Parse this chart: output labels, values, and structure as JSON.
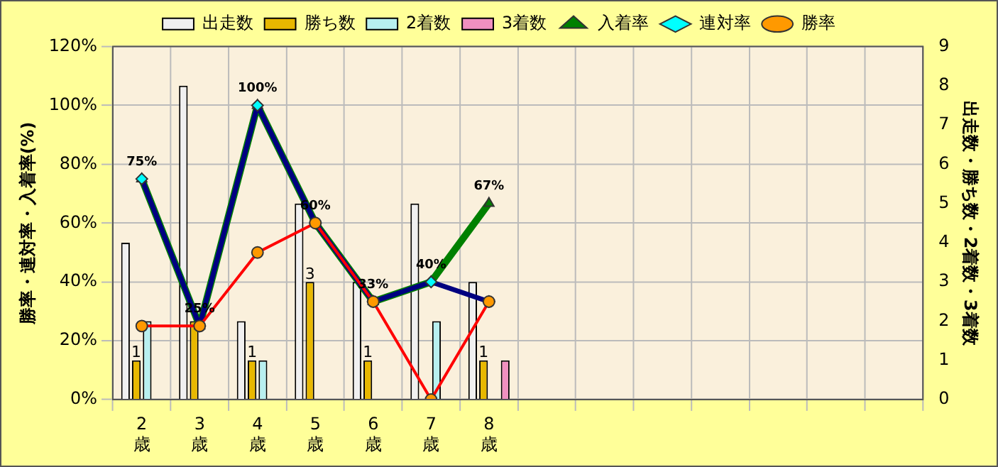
{
  "chart_data": {
    "type": "bar",
    "ylabel": "勝率・連対率・入着率(%)",
    "y2label": "出走数・勝ち数・2着数・3着数",
    "categories": [
      "2歳",
      "3歳",
      "4歳",
      "5歳",
      "6歳",
      "7歳",
      "8歳",
      null,
      null,
      null,
      null,
      null,
      null,
      null
    ],
    "series": [
      {
        "name": "出走数",
        "axis": "y2",
        "color": "#f0f0f0",
        "values": [
          4,
          8,
          2,
          5,
          3,
          5,
          3,
          null,
          null,
          null,
          null,
          null,
          null,
          null
        ]
      },
      {
        "name": "勝ち数",
        "axis": "y2",
        "color": "#e8b800",
        "values": [
          1,
          2,
          1,
          3,
          1,
          0,
          1,
          null,
          null,
          null,
          null,
          null,
          null,
          null
        ],
        "value_labels": [
          "1",
          null,
          "1",
          "3",
          "1",
          null,
          "1",
          null,
          null,
          null,
          null,
          null,
          null,
          null
        ]
      },
      {
        "name": "2着数",
        "axis": "y2",
        "color": "#b8f0f0",
        "values": [
          2,
          0,
          1,
          0,
          0,
          2,
          0,
          null,
          null,
          null,
          null,
          null,
          null,
          null
        ]
      },
      {
        "name": "3着数",
        "axis": "y2",
        "color": "#f090c0",
        "values": [
          0,
          0,
          0,
          0,
          0,
          0,
          1,
          null,
          null,
          null,
          null,
          null,
          null,
          null
        ]
      },
      {
        "name": "入着率",
        "type": "line",
        "axis": "y",
        "color": "#008000",
        "marker": "triangle",
        "values": [
          75,
          25,
          100,
          60,
          33.3,
          40,
          66.7,
          null,
          null,
          null,
          null,
          null,
          null,
          null
        ],
        "value_labels": [
          "75%",
          "25%",
          "100%",
          "60%",
          "33%",
          "40%",
          "67%",
          null,
          null,
          null,
          null,
          null,
          null,
          null
        ]
      },
      {
        "name": "連対率",
        "type": "line",
        "axis": "y",
        "color": "#000080",
        "marker": "diamond",
        "values": [
          75,
          25,
          100,
          60,
          33.3,
          40,
          33.3,
          null,
          null,
          null,
          null,
          null,
          null,
          null
        ]
      },
      {
        "name": "勝率",
        "type": "line",
        "axis": "y",
        "color": "#ff0000",
        "marker": "circle",
        "values": [
          25,
          25,
          50,
          60,
          33.3,
          0,
          33.3,
          null,
          null,
          null,
          null,
          null,
          null,
          null
        ]
      }
    ],
    "ylim": [
      0,
      120
    ],
    "yticks": [
      {
        "value": 0,
        "label": "0%"
      },
      {
        "value": 20,
        "label": "20%"
      },
      {
        "value": 40,
        "label": "40%"
      },
      {
        "value": 60,
        "label": "60%"
      },
      {
        "value": 80,
        "label": "80%"
      },
      {
        "value": 100,
        "label": "100%"
      },
      {
        "value": 120,
        "label": "120%"
      }
    ],
    "y2lim": [
      0,
      9
    ],
    "y2ticks": [
      0,
      1,
      2,
      3,
      4,
      5,
      6,
      7,
      8,
      9
    ],
    "grid": true,
    "legend": "top"
  }
}
